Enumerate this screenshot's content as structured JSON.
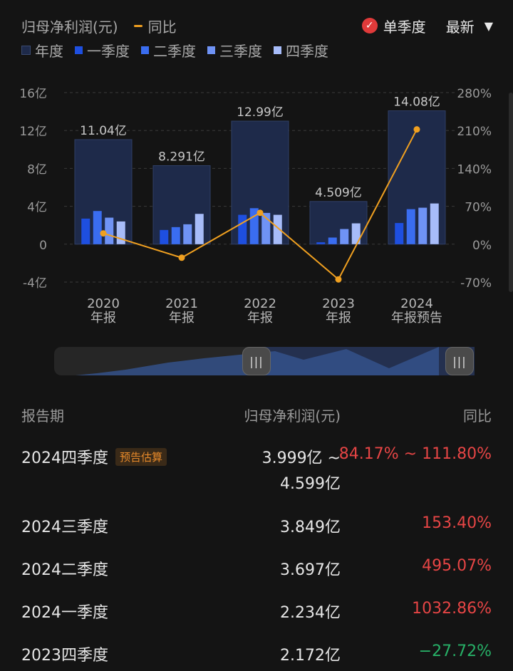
{
  "legend": {
    "series_label": "归母净利润(元)",
    "yoy_label": "同比",
    "year_label": "年度",
    "q1_label": "一季度",
    "q2_label": "二季度",
    "q3_label": "三季度",
    "q4_label": "四季度"
  },
  "mode": {
    "single_quarter_label": "单季度",
    "latest_label": "最新",
    "caret": "▼",
    "check": "✓"
  },
  "colors": {
    "year_bar": "#1e2a4a",
    "q1": "#1e4fe0",
    "q2": "#3a6df0",
    "q3": "#6f93f5",
    "q4": "#a7bcf9",
    "yoy_line": "#f0a020",
    "red": "#e64545",
    "green": "#27b067"
  },
  "chart_data": {
    "type": "bar",
    "categories": [
      "2020\n年报",
      "2021\n年报",
      "2022\n年报",
      "2023\n年报",
      "2024\n年报预告"
    ],
    "year_values": [
      11.04,
      8.291,
      12.99,
      4.509,
      14.08
    ],
    "year_labels": [
      "11.04亿",
      "8.291亿",
      "12.99亿",
      "4.509亿",
      "14.08亿"
    ],
    "series": [
      {
        "name": "一季度",
        "values": [
          2.7,
          1.5,
          3.1,
          0.2,
          2.234
        ]
      },
      {
        "name": "二季度",
        "values": [
          3.5,
          1.8,
          3.8,
          0.7,
          3.697
        ]
      },
      {
        "name": "三季度",
        "values": [
          2.8,
          2.1,
          3.3,
          1.6,
          3.849
        ]
      },
      {
        "name": "四季度",
        "values": [
          2.4,
          3.2,
          3.1,
          2.2,
          4.299
        ]
      }
    ],
    "yoy": [
      20,
      -25,
      58,
      -65,
      212
    ],
    "ylim": [
      -4,
      16
    ],
    "yticks": [
      -4,
      0,
      4,
      8,
      12,
      16
    ],
    "ytick_labels": [
      "-4亿",
      "0",
      "4亿",
      "8亿",
      "12亿",
      "16亿"
    ],
    "y2lim": [
      -70,
      280
    ],
    "y2ticks": [
      -70,
      0,
      70,
      140,
      210,
      280
    ],
    "y2tick_labels": [
      "-70%",
      "0%",
      "70%",
      "140%",
      "210%",
      "280%"
    ],
    "grid": true
  },
  "table": {
    "head": {
      "period": "报告期",
      "value": "归母净利润(元)",
      "yoy": "同比"
    },
    "rows": [
      {
        "period": "2024四季度",
        "tag": "预告估算",
        "value": "3.999亿 ~",
        "value2": "4.599亿",
        "yoy": "84.17% ~ 111.80%",
        "dir": "up"
      },
      {
        "period": "2024三季度",
        "tag": "",
        "value": "3.849亿",
        "value2": "",
        "yoy": "153.40%",
        "dir": "up"
      },
      {
        "period": "2024二季度",
        "tag": "",
        "value": "3.697亿",
        "value2": "",
        "yoy": "495.07%",
        "dir": "up"
      },
      {
        "period": "2024一季度",
        "tag": "",
        "value": "2.234亿",
        "value2": "",
        "yoy": "1032.86%",
        "dir": "up"
      },
      {
        "period": "2023四季度",
        "tag": "",
        "value": "2.172亿",
        "value2": "",
        "yoy": "−27.72%",
        "dir": "down"
      }
    ]
  }
}
